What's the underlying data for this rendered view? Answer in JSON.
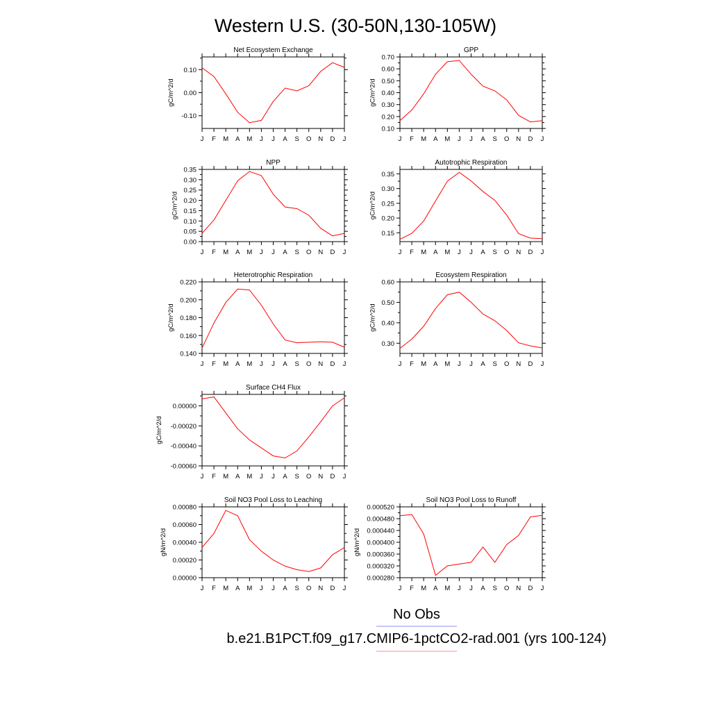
{
  "title": "Western U.S. (30-50N,130-105W)",
  "legend": [
    {
      "label": "No Obs",
      "color": "#8c8cf0"
    },
    {
      "label": "b.e21.B1PCT.f09_g17.CMIP6-1pctCO2-rad.001 (yrs 100-124)",
      "color": "#ff8c8c"
    }
  ],
  "chart_data": [
    {
      "type": "line",
      "title": "Net Ecosystem Exchange",
      "ylabel": "gC/m^2/d",
      "categories": [
        "J",
        "F",
        "M",
        "A",
        "M",
        "J",
        "J",
        "A",
        "S",
        "O",
        "N",
        "D",
        "J"
      ],
      "ylim": [
        -0.155,
        0.155
      ],
      "yticks": [
        -0.1,
        0.0,
        0.1
      ],
      "ytick_labels": [
        "-0.10",
        "0.00",
        "0.10"
      ],
      "series": [
        {
          "color": "#ff0000",
          "values": [
            0.108,
            0.07,
            -0.005,
            -0.085,
            -0.13,
            -0.12,
            -0.038,
            0.02,
            0.008,
            0.03,
            0.092,
            0.13,
            0.11
          ]
        }
      ]
    },
    {
      "type": "line",
      "title": "GPP",
      "ylabel": "gC/m^2/d",
      "categories": [
        "J",
        "F",
        "M",
        "A",
        "M",
        "J",
        "J",
        "A",
        "S",
        "O",
        "N",
        "D",
        "J"
      ],
      "ylim": [
        0.1,
        0.7
      ],
      "yticks": [
        0.1,
        0.2,
        0.3,
        0.4,
        0.5,
        0.6,
        0.7
      ],
      "ytick_labels": [
        "0.10",
        "0.20",
        "0.30",
        "0.40",
        "0.50",
        "0.60",
        "0.70"
      ],
      "series": [
        {
          "color": "#ff0000",
          "values": [
            0.165,
            0.255,
            0.39,
            0.555,
            0.66,
            0.67,
            0.555,
            0.455,
            0.415,
            0.34,
            0.21,
            0.155,
            0.165
          ]
        }
      ]
    },
    {
      "type": "line",
      "title": "NPP",
      "ylabel": "gC/m^2/d",
      "categories": [
        "J",
        "F",
        "M",
        "A",
        "M",
        "J",
        "J",
        "A",
        "S",
        "O",
        "N",
        "D",
        "J"
      ],
      "ylim": [
        0.0,
        0.35
      ],
      "yticks": [
        0.0,
        0.05,
        0.1,
        0.15,
        0.2,
        0.25,
        0.3,
        0.35
      ],
      "ytick_labels": [
        "0.00",
        "0.05",
        "0.10",
        "0.15",
        "0.20",
        "0.25",
        "0.30",
        "0.35"
      ],
      "series": [
        {
          "color": "#ff0000",
          "values": [
            0.04,
            0.105,
            0.2,
            0.295,
            0.34,
            0.32,
            0.23,
            0.168,
            0.16,
            0.128,
            0.065,
            0.028,
            0.04
          ]
        }
      ]
    },
    {
      "type": "line",
      "title": "Autotrophic Respiration",
      "ylabel": "gC/m^2/d",
      "categories": [
        "J",
        "F",
        "M",
        "A",
        "M",
        "J",
        "J",
        "A",
        "S",
        "O",
        "N",
        "D",
        "J"
      ],
      "ylim": [
        0.12,
        0.365
      ],
      "yticks": [
        0.15,
        0.2,
        0.25,
        0.3,
        0.35
      ],
      "ytick_labels": [
        "0.15",
        "0.20",
        "0.25",
        "0.30",
        "0.35"
      ],
      "series": [
        {
          "color": "#ff0000",
          "values": [
            0.128,
            0.148,
            0.19,
            0.258,
            0.325,
            0.355,
            0.326,
            0.29,
            0.26,
            0.21,
            0.147,
            0.132,
            0.13
          ]
        }
      ]
    },
    {
      "type": "line",
      "title": "Heterotrophic Respiration",
      "ylabel": "gC/m^2/d",
      "categories": [
        "J",
        "F",
        "M",
        "A",
        "M",
        "J",
        "J",
        "A",
        "S",
        "O",
        "N",
        "D",
        "J"
      ],
      "ylim": [
        0.14,
        0.22
      ],
      "yticks": [
        0.14,
        0.16,
        0.18,
        0.2,
        0.22
      ],
      "ytick_labels": [
        "0.140",
        "0.160",
        "0.180",
        "0.200",
        "0.220"
      ],
      "series": [
        {
          "color": "#ff0000",
          "values": [
            0.146,
            0.174,
            0.197,
            0.212,
            0.211,
            0.194,
            0.173,
            0.155,
            0.152,
            0.1525,
            0.153,
            0.1525,
            0.147
          ]
        }
      ]
    },
    {
      "type": "line",
      "title": "Ecosystem Respiration",
      "ylabel": "gC/m^2/d",
      "categories": [
        "J",
        "F",
        "M",
        "A",
        "M",
        "J",
        "J",
        "A",
        "S",
        "O",
        "N",
        "D",
        "J"
      ],
      "ylim": [
        0.25,
        0.6
      ],
      "yticks": [
        0.3,
        0.4,
        0.5,
        0.6
      ],
      "ytick_labels": [
        "0.30",
        "0.40",
        "0.50",
        "0.60"
      ],
      "series": [
        {
          "color": "#ff0000",
          "values": [
            0.275,
            0.32,
            0.383,
            0.47,
            0.537,
            0.55,
            0.5,
            0.443,
            0.41,
            0.362,
            0.302,
            0.287,
            0.277
          ]
        }
      ]
    },
    {
      "type": "line",
      "title": "Surface CH4 Flux",
      "ylabel": "gC/m^2/d",
      "categories": [
        "J",
        "F",
        "M",
        "A",
        "M",
        "J",
        "J",
        "A",
        "S",
        "O",
        "N",
        "D",
        "J"
      ],
      "ylim": [
        -0.0006,
        0.000115
      ],
      "yticks": [
        -0.0006,
        -0.0004,
        -0.0002,
        0.0
      ],
      "ytick_labels": [
        "-0.00060",
        "-0.00040",
        "-0.00020",
        "0.00000"
      ],
      "series": [
        {
          "color": "#ff0000",
          "values": [
            7e-05,
            9e-05,
            -7e-05,
            -0.00023,
            -0.00034,
            -0.00042,
            -0.0005,
            -0.00052,
            -0.00045,
            -0.00031,
            -0.00016,
            0.0,
            8e-05
          ]
        }
      ]
    },
    {
      "type": "line",
      "title": "Soil NO3 Pool Loss to Leaching",
      "ylabel": "gN/m^2/d",
      "categories": [
        "J",
        "F",
        "M",
        "A",
        "M",
        "J",
        "J",
        "A",
        "S",
        "O",
        "N",
        "D",
        "J"
      ],
      "ylim": [
        0.0,
        0.0008
      ],
      "yticks": [
        0.0,
        0.0002,
        0.0004,
        0.0006,
        0.0008
      ],
      "ytick_labels": [
        "0.00000",
        "0.00020",
        "0.00040",
        "0.00060",
        "0.00080"
      ],
      "series": [
        {
          "color": "#ff0000",
          "values": [
            0.00034,
            0.0005,
            0.00076,
            0.0007,
            0.00043,
            0.0003,
            0.0002,
            0.00013,
            9e-05,
            7e-05,
            0.00011,
            0.00026,
            0.00034
          ]
        }
      ]
    },
    {
      "type": "line",
      "title": "Soil NO3 Pool Loss to Runoff",
      "ylabel": "gN/m^2/d",
      "categories": [
        "J",
        "F",
        "M",
        "A",
        "M",
        "J",
        "J",
        "A",
        "S",
        "O",
        "N",
        "D",
        "J"
      ],
      "ylim": [
        0.00028,
        0.00052
      ],
      "yticks": [
        0.00028,
        0.00032,
        0.00036,
        0.0004,
        0.00044,
        0.00048,
        0.00052
      ],
      "ytick_labels": [
        "0.000280",
        "0.000320",
        "0.000360",
        "0.000400",
        "0.000440",
        "0.000480",
        "0.000520"
      ],
      "series": [
        {
          "color": "#ff0000",
          "values": [
            0.00049,
            0.000494,
            0.000428,
            0.000288,
            0.00032,
            0.000326,
            0.000332,
            0.000384,
            0.000332,
            0.000392,
            0.000423,
            0.000486,
            0.000491
          ]
        }
      ]
    }
  ]
}
